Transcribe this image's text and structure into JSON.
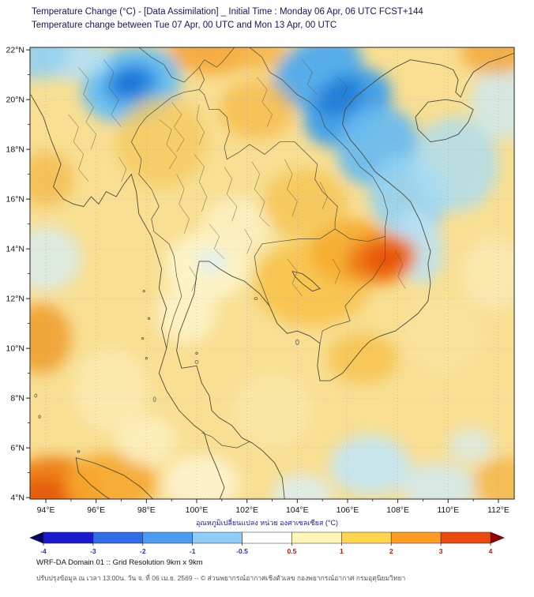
{
  "header": {
    "title_line1": "Temperature Change (°C) - [Data Assimilation] _ Initial Time : Monday 06 Apr, 06 UTC FCST+144",
    "title_line2": "Temperature change between Tue 07 Apr, 00 UTC and Mon 13 Apr, 00 UTC"
  },
  "footer": {
    "line1": "WRF-DA Domain 01 :: Grid Resolution 9km x 9km",
    "line2": "ปรับปรุงข้อมูล ณ เวลา 13:00น. วัน จ. ที่ 06 เม.ย. 2569 -- © ส่วนพยากรณ์อากาศเชิงตัวเลข กองพยากรณ์อากาศ กรมอุตุนิยมวิทยา"
  },
  "chart_data": {
    "type": "heatmap",
    "title": "Temperature change (°C) between Tue 07 Apr 00 UTC and Mon 13 Apr 00 UTC, WRF-DA FCST+144",
    "x_axis": {
      "range": [
        93.37,
        112.63
      ],
      "ticks": [
        {
          "v": 94,
          "label": "94°E"
        },
        {
          "v": 96,
          "label": "96°E"
        },
        {
          "v": 98,
          "label": "98°E"
        },
        {
          "v": 100,
          "label": "100°E"
        },
        {
          "v": 102,
          "label": "102°E"
        },
        {
          "v": 104,
          "label": "104°E"
        },
        {
          "v": 106,
          "label": "106°E"
        },
        {
          "v": 108,
          "label": "108°E"
        },
        {
          "v": 110,
          "label": "110°E"
        },
        {
          "v": 112,
          "label": "112°E"
        }
      ],
      "minor": [
        95,
        97,
        99,
        101,
        103,
        105,
        107,
        109,
        111
      ]
    },
    "y_axis": {
      "range": [
        3.94,
        22.1
      ],
      "ticks": [
        {
          "v": 22,
          "label": "22°N"
        },
        {
          "v": 20,
          "label": "20°N"
        },
        {
          "v": 18,
          "label": "18°N"
        },
        {
          "v": 16,
          "label": "16°N"
        },
        {
          "v": 14,
          "label": "14°N"
        },
        {
          "v": 12,
          "label": "12°N"
        },
        {
          "v": 10,
          "label": "10°N"
        },
        {
          "v": 8,
          "label": "8°N"
        },
        {
          "v": 6,
          "label": "6°N"
        },
        {
          "v": 4,
          "label": "4°N"
        }
      ],
      "minor": [
        5,
        7,
        9,
        11,
        13,
        15,
        17,
        19,
        21
      ]
    },
    "colorbar": {
      "label": "อุณหภูมิเปลี่ยนแปลง หน่วย องศาเซลเซียส (°C)",
      "tick_labels": [
        "-4",
        "-3",
        "-2",
        "-1",
        "-0.5",
        "0.5",
        "1",
        "2",
        "3",
        "4"
      ],
      "segment_colors": [
        "#1a1ad0",
        "#2e6ce8",
        "#4a9cf0",
        "#90ccf5",
        "#ffffff",
        "#fff6b8",
        "#ffd44f",
        "#ff9a24",
        "#ea4a0e"
      ],
      "arrow_colors": [
        "#00006b",
        "#980000"
      ],
      "negative_label_color": "#2233cc",
      "positive_label_color": "#cc1100"
    },
    "field": {
      "units": "°C",
      "base_color": "#f8df92",
      "notable_features": [
        {
          "location": "Shan Highlands / N Myanmar (~97.5E 20.5N)",
          "change_c": -2.5
        },
        {
          "location": "N Vietnam - Gulf of Tonkin diagonal band (104-109E, 16-22N)",
          "change_c": -2
        },
        {
          "location": "S Vietnam / NE Cambodia hotspot (~107.5E 13.5N)",
          "change_c": 3
        },
        {
          "location": "N Sumatra / Aceh corner (~94.5E 4.5N)",
          "change_c": 2.5
        },
        {
          "location": "Central Thailand (~100.5E 13.5N)",
          "change_c": 0.3
        },
        {
          "location": "Most of domain (yellow background)",
          "change_c": 1
        }
      ],
      "blobs": [
        {
          "lon": 97.4,
          "lat": 20.6,
          "rx": 2.0,
          "ry": 1.5,
          "rot": -15,
          "color": "#6cc0ef",
          "op": 1
        },
        {
          "lon": 97.4,
          "lat": 20.65,
          "rx": 1.1,
          "ry": 0.8,
          "rot": -15,
          "color": "#2f90e2",
          "op": 1
        },
        {
          "lon": 97.35,
          "lat": 20.7,
          "rx": 0.55,
          "ry": 0.4,
          "rot": -15,
          "color": "#1a6fd4",
          "op": 1
        },
        {
          "lon": 95.0,
          "lat": 21.7,
          "rx": 1.5,
          "ry": 0.9,
          "rot": 0,
          "color": "#b4e0f5",
          "op": 0.9
        },
        {
          "lon": 93.6,
          "lat": 21.9,
          "rx": 1.3,
          "ry": 1.1,
          "rot": 0,
          "color": "#96d2ef",
          "op": 0.9
        },
        {
          "lon": 100.6,
          "lat": 22.0,
          "rx": 1.7,
          "ry": 1.0,
          "rot": 0,
          "color": "#f4a93c",
          "op": 0.9
        },
        {
          "lon": 102.4,
          "lat": 21.9,
          "rx": 1.2,
          "ry": 0.7,
          "rot": 0,
          "color": "#f4b446",
          "op": 0.8
        },
        {
          "lon": 104.8,
          "lat": 21.1,
          "rx": 1.9,
          "ry": 1.3,
          "rot": -30,
          "color": "#57ade9",
          "op": 1
        },
        {
          "lon": 106.0,
          "lat": 19.7,
          "rx": 1.9,
          "ry": 1.4,
          "rot": -35,
          "color": "#46a2e6",
          "op": 1
        },
        {
          "lon": 105.7,
          "lat": 20.1,
          "rx": 1.0,
          "ry": 0.7,
          "rot": -35,
          "color": "#2280d8",
          "op": 1
        },
        {
          "lon": 107.2,
          "lat": 18.1,
          "rx": 1.7,
          "ry": 1.5,
          "rot": -35,
          "color": "#6cbcee",
          "op": 0.95
        },
        {
          "lon": 108.4,
          "lat": 16.1,
          "rx": 1.5,
          "ry": 1.7,
          "rot": -20,
          "color": "#92d0f2",
          "op": 0.9
        },
        {
          "lon": 108.8,
          "lat": 14.1,
          "rx": 1.0,
          "ry": 1.5,
          "rot": -10,
          "color": "#b8e2f6",
          "op": 0.85
        },
        {
          "lon": 110.3,
          "lat": 17.4,
          "rx": 1.7,
          "ry": 1.9,
          "rot": 0,
          "color": "#abdcf4",
          "op": 0.8
        },
        {
          "lon": 112.2,
          "lat": 19.9,
          "rx": 1.3,
          "ry": 1.5,
          "rot": 0,
          "color": "#c9eaf8",
          "op": 0.75
        },
        {
          "lon": 111.9,
          "lat": 21.9,
          "rx": 1.4,
          "ry": 0.9,
          "rot": 0,
          "color": "#f2a93c",
          "op": 0.85
        },
        {
          "lon": 94.0,
          "lat": 16.8,
          "rx": 1.1,
          "ry": 1.1,
          "rot": 0,
          "color": "#f4b848",
          "op": 0.75
        },
        {
          "lon": 93.8,
          "lat": 10.4,
          "rx": 1.2,
          "ry": 1.4,
          "rot": 0,
          "color": "#f0a030",
          "op": 0.9
        },
        {
          "lon": 94.0,
          "lat": 13.6,
          "rx": 1.4,
          "ry": 1.3,
          "rot": 0,
          "color": "#d6edf8",
          "op": 0.75
        },
        {
          "lon": 94.3,
          "lat": 4.35,
          "rx": 1.9,
          "ry": 1.3,
          "rot": 0,
          "color": "#ef8119",
          "op": 1
        },
        {
          "lon": 93.9,
          "lat": 4.1,
          "rx": 1.0,
          "ry": 0.65,
          "rot": 0,
          "color": "#e55c0d",
          "op": 1
        },
        {
          "lon": 96.6,
          "lat": 4.6,
          "rx": 1.8,
          "ry": 1.2,
          "rot": 0,
          "color": "#f5a72f",
          "op": 0.9
        },
        {
          "lon": 98.6,
          "lat": 18.3,
          "rx": 1.8,
          "ry": 1.8,
          "rot": 0,
          "color": "#f6c85c",
          "op": 0.75
        },
        {
          "lon": 100.4,
          "lat": 13.3,
          "rx": 1.7,
          "ry": 1.4,
          "rot": 0,
          "color": "#fdf3c8",
          "op": 0.95
        },
        {
          "lon": 101.6,
          "lat": 14.9,
          "rx": 1.4,
          "ry": 1.2,
          "rot": 0,
          "color": "#fcf0c0",
          "op": 0.9
        },
        {
          "lon": 99.6,
          "lat": 11.4,
          "rx": 1.2,
          "ry": 1.2,
          "rot": 0,
          "color": "#fdf2c6",
          "op": 0.9
        },
        {
          "lon": 100.6,
          "lat": 13.5,
          "rx": 0.55,
          "ry": 0.45,
          "rot": 0,
          "color": "#d9eef6",
          "op": 0.9
        },
        {
          "lon": 104.6,
          "lat": 12.6,
          "rx": 2.3,
          "ry": 1.7,
          "rot": 0,
          "color": "#f7c24a",
          "op": 0.9
        },
        {
          "lon": 106.2,
          "lat": 13.9,
          "rx": 1.7,
          "ry": 1.3,
          "rot": 0,
          "color": "#f5ad33",
          "op": 0.95
        },
        {
          "lon": 107.35,
          "lat": 13.6,
          "rx": 1.4,
          "ry": 1.0,
          "rot": -10,
          "color": "#ee7c15",
          "op": 1
        },
        {
          "lon": 107.5,
          "lat": 13.6,
          "rx": 0.8,
          "ry": 0.55,
          "rot": -10,
          "color": "#e7520b",
          "op": 1
        },
        {
          "lon": 106.6,
          "lat": 9.6,
          "rx": 1.4,
          "ry": 1.0,
          "rot": 0,
          "color": "#f6c14a",
          "op": 0.8
        },
        {
          "lon": 106.9,
          "lat": 5.3,
          "rx": 1.6,
          "ry": 1.2,
          "rot": 0,
          "color": "#c2e5f4",
          "op": 0.9
        },
        {
          "lon": 109.6,
          "lat": 4.4,
          "rx": 1.5,
          "ry": 1.0,
          "rot": 0,
          "color": "#cfeaf6",
          "op": 0.8
        },
        {
          "lon": 104.2,
          "lat": 4.1,
          "rx": 1.2,
          "ry": 0.85,
          "rot": 0,
          "color": "#daeef8",
          "op": 0.8
        },
        {
          "lon": 96.6,
          "lat": 8.3,
          "rx": 1.5,
          "ry": 1.7,
          "rot": 0,
          "color": "#fbeab0",
          "op": 0.85
        },
        {
          "lon": 100.2,
          "lat": 4.6,
          "rx": 1.5,
          "ry": 1.1,
          "rot": 0,
          "color": "#fdf3cf",
          "op": 0.9
        },
        {
          "lon": 102.4,
          "lat": 19.6,
          "rx": 1.5,
          "ry": 1.2,
          "rot": 0,
          "color": "#f5ba45",
          "op": 0.75
        },
        {
          "lon": 111.8,
          "lat": 13.0,
          "rx": 1.3,
          "ry": 1.5,
          "rot": 0,
          "color": "#faeab4",
          "op": 0.8
        },
        {
          "lon": 104.3,
          "lat": 15.8,
          "rx": 1.7,
          "ry": 1.4,
          "rot": 0,
          "color": "#f6c24c",
          "op": 0.75
        },
        {
          "lon": 112.3,
          "lat": 4.6,
          "rx": 1.3,
          "ry": 1.0,
          "rot": 0,
          "color": "#f4b443",
          "op": 0.8
        },
        {
          "lon": 110.9,
          "lat": 6.1,
          "rx": 0.9,
          "ry": 0.7,
          "rot": 0,
          "color": "#d6ecf7",
          "op": 0.7
        },
        {
          "lon": 98.0,
          "lat": 6.3,
          "rx": 1.2,
          "ry": 1.0,
          "rot": 0,
          "color": "#fcf0c2",
          "op": 0.8
        },
        {
          "lon": 103.0,
          "lat": 7.5,
          "rx": 1.6,
          "ry": 1.5,
          "rot": 0,
          "color": "#fbe8ac",
          "op": 0.7
        },
        {
          "lon": 109.8,
          "lat": 10.5,
          "rx": 1.6,
          "ry": 1.6,
          "rot": 0,
          "color": "#fae5a2",
          "op": 0.6
        }
      ]
    }
  }
}
